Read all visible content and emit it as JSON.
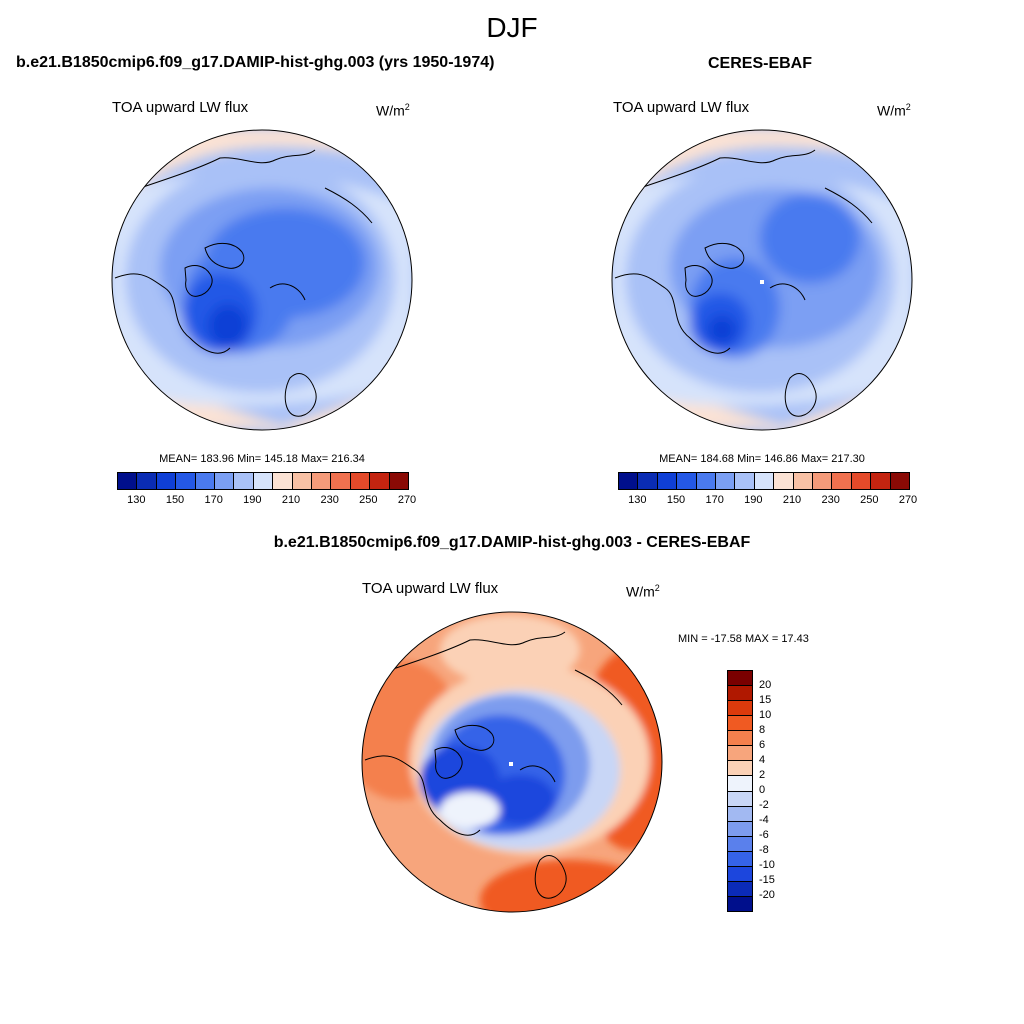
{
  "figure": {
    "title": "DJF"
  },
  "panels": {
    "model": {
      "title": "b.e21.B1850cmip6.f09_g17.DAMIP-hist-ghg.003 (yrs 1950-1974)",
      "variable": "TOA upward LW flux",
      "units_base": "W/m",
      "units_exp": "2",
      "stats": "MEAN= 183.96  Min= 145.18  Max= 216.34"
    },
    "obs": {
      "title": "CERES-EBAF",
      "variable": "TOA upward LW flux",
      "units_base": "W/m",
      "units_exp": "2",
      "stats": "MEAN= 184.68  Min= 146.86  Max= 217.30"
    },
    "diff": {
      "title": "b.e21.B1850cmip6.f09_g17.DAMIP-hist-ghg.003 - CERES-EBAF",
      "variable": "TOA upward LW flux",
      "units_base": "W/m",
      "units_exp": "2",
      "stats": "MIN = -17.58 MAX =  17.43"
    }
  },
  "colorbars": {
    "abs": {
      "colors": [
        "#000f8c",
        "#0a2cb4",
        "#0f3fd6",
        "#2458e6",
        "#4a7aef",
        "#7b9ff3",
        "#a9c1f7",
        "#d6e3fb",
        "#fbe2d4",
        "#f8c1a5",
        "#f59b7a",
        "#f0714f",
        "#e44a2a",
        "#c42410",
        "#8a0a05"
      ],
      "tick_labels": [
        "130",
        "150",
        "170",
        "190",
        "210",
        "230",
        "250",
        "270"
      ]
    },
    "diff": {
      "colors": [
        "#7a0000",
        "#b01800",
        "#dc3a0c",
        "#f05a22",
        "#f4804d",
        "#f7a57c",
        "#fbd1b6",
        "#eef3fc",
        "#c8d6f6",
        "#a2b9f2",
        "#7d9cee",
        "#5a80ec",
        "#3563e8",
        "#1c46dd",
        "#0b2bb8",
        "#000f8c"
      ],
      "tick_labels": [
        "20",
        "15",
        "10",
        "8",
        "6",
        "4",
        "2",
        "0",
        "-2",
        "-4",
        "-6",
        "-8",
        "-10",
        "-15",
        "-20"
      ]
    }
  }
}
